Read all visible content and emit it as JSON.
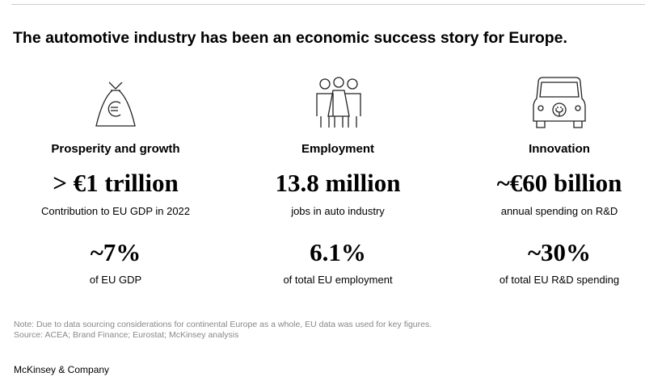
{
  "header": {
    "title": "The automotive industry has been an economic success story for Europe."
  },
  "columns": [
    {
      "heading": "Prosperity and growth",
      "primary": {
        "figure": "> €1 trillion",
        "caption": "Contribution to EU GDP in 2022"
      },
      "secondary": {
        "figure": "~7%",
        "caption": "of EU GDP"
      }
    },
    {
      "heading": "Employment",
      "primary": {
        "figure": "13.8 million",
        "caption": "jobs in auto industry"
      },
      "secondary": {
        "figure": "6.1%",
        "caption": "of total EU employment"
      }
    },
    {
      "heading": "Innovation",
      "primary": {
        "figure": "~€60 billion",
        "caption": "annual spending on R&D"
      },
      "secondary": {
        "figure": "~30%",
        "caption": "of total EU R&D spending"
      }
    }
  ],
  "footnotes": {
    "note": "Note: Due to data sourcing considerations for continental Europe as a whole, EU data was used for key figures.",
    "source": "Source: ACEA; Brand Finance; Eurostat; McKinsey analysis"
  },
  "footer": {
    "brand": "McKinsey & Company"
  }
}
